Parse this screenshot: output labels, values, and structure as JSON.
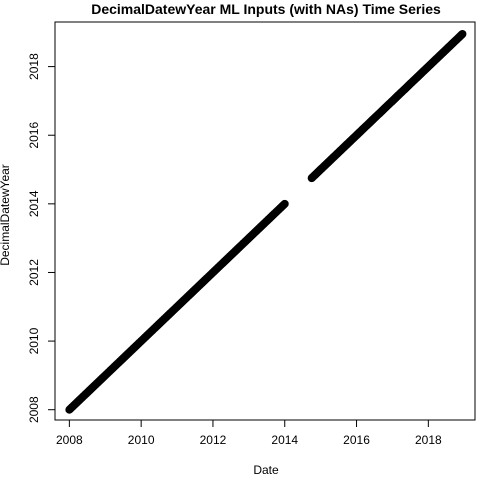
{
  "chart_data": {
    "type": "scatter",
    "title": "DecimalDatewYear ML Inputs (with NAs) Time Series",
    "xlabel": "Date",
    "ylabel": "DecimalDatewYear",
    "xlim": [
      2007.6,
      2019.3
    ],
    "ylim": [
      2007.7,
      2019.3
    ],
    "x_ticks": [
      2008,
      2010,
      2012,
      2014,
      2016,
      2018
    ],
    "y_ticks": [
      2008,
      2010,
      2012,
      2014,
      2016,
      2018
    ],
    "grid": false,
    "legend": "none",
    "marker": "filled-circle",
    "color": "#000000",
    "series": [
      {
        "x_start": 2008.0,
        "x_end": 2014.0,
        "y_start": 2008.0,
        "y_end": 2014.0
      },
      {
        "x_start": 2014.75,
        "x_end": 2018.95,
        "y_start": 2014.75,
        "y_end": 2018.95
      }
    ]
  }
}
